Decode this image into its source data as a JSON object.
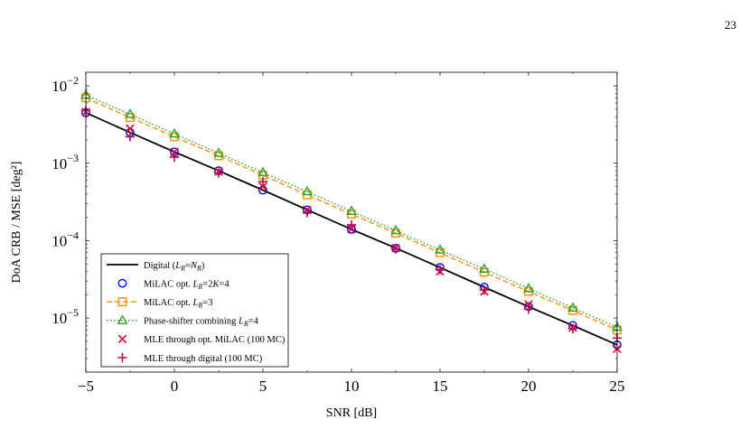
{
  "page_number": "23",
  "chart_data": {
    "type": "line",
    "xlabel": "SNR [dB]",
    "ylabel": "DoA CRB / MSE [deg²]",
    "xlim": [
      -5,
      25
    ],
    "ylim": [
      2e-06,
      0.015
    ],
    "yscale": "log",
    "grid": false,
    "legend_position": "bottom-left",
    "x_ticks": [
      "−5",
      "0",
      "5",
      "10",
      "15",
      "20",
      "25"
    ],
    "y_ticks": [
      {
        "base": "10",
        "exp": "−2"
      },
      {
        "base": "10",
        "exp": "−3"
      },
      {
        "base": "10",
        "exp": "−4"
      },
      {
        "base": "10",
        "exp": "−5"
      }
    ],
    "y_tick_values": [
      0.01,
      0.001,
      0.0001,
      1e-05
    ],
    "x": [
      -5,
      -2.5,
      0,
      2.5,
      5,
      7.5,
      10,
      12.5,
      15,
      17.5,
      20,
      22.5,
      25
    ],
    "series": [
      {
        "name": "Digital (LR=NR)",
        "color": "#000000",
        "style": "solid",
        "marker": "none",
        "values": [
          0.0045,
          0.0025,
          0.0014,
          0.0008,
          0.00045,
          0.00025,
          0.00014,
          8e-05,
          4.5e-05,
          2.5e-05,
          1.4e-05,
          8e-06,
          4.5e-06
        ]
      },
      {
        "name": "MiLAC opt. LR=2K=4",
        "color": "#0000ff",
        "style": "none",
        "marker": "circle",
        "values": [
          0.0045,
          0.0025,
          0.0014,
          0.0008,
          0.00045,
          0.00025,
          0.00014,
          8e-05,
          4.5e-05,
          2.5e-05,
          1.4e-05,
          8e-06,
          4.5e-06
        ]
      },
      {
        "name": "MiLAC opt. LR=3",
        "color": "#ff8c00",
        "style": "dashed",
        "marker": "square",
        "values": [
          0.007,
          0.0039,
          0.0022,
          0.00125,
          0.0007,
          0.00039,
          0.00022,
          0.000125,
          7e-05,
          3.9e-05,
          2.2e-05,
          1.25e-05,
          7e-06
        ]
      },
      {
        "name": "Phase-shifter combining LR=4",
        "color": "#2ca02c",
        "style": "dotted",
        "marker": "triangle",
        "values": [
          0.0076,
          0.0043,
          0.0024,
          0.00135,
          0.00076,
          0.00043,
          0.00024,
          0.000135,
          7.6e-05,
          4.3e-05,
          2.4e-05,
          1.35e-05,
          7.6e-06
        ]
      },
      {
        "name": "MLE through opt. MiLAC (100 MC)",
        "color": "#e8002a",
        "style": "none",
        "marker": "x",
        "values": [
          0.0046,
          0.0028,
          0.0014,
          0.00078,
          0.0005,
          0.00025,
          0.00014,
          8e-05,
          4e-05,
          2.2e-05,
          1.5e-05,
          7.5e-06,
          4e-06
        ]
      },
      {
        "name": "MLE through digital (100 MC)",
        "color": "#b0104e",
        "style": "none",
        "marker": "plus",
        "values": [
          0.0048,
          0.0022,
          0.0012,
          0.00075,
          0.00058,
          0.00023,
          0.00016,
          7.8e-05,
          4.2e-05,
          2.3e-05,
          1.3e-05,
          7.3e-06,
          5.5e-06
        ]
      }
    ],
    "legend": [
      {
        "pre": "Digital (",
        "var": "L",
        "sub": "R",
        "mid": "=",
        "var2": "N",
        "sub2": "R",
        "post": ")"
      },
      {
        "pre": "MiLAC opt. ",
        "var": "L",
        "sub": "R",
        "mid": "=2",
        "var2": "K",
        "sub2": "",
        "post": "=4"
      },
      {
        "pre": "MiLAC opt. ",
        "var": "L",
        "sub": "R",
        "mid": "=3",
        "var2": "",
        "sub2": "",
        "post": ""
      },
      {
        "pre": "Phase-shifter combining ",
        "var": "L",
        "sub": "R",
        "mid": "=4",
        "var2": "",
        "sub2": "",
        "post": ""
      },
      {
        "pre": "MLE through opt. MiLAC (100 MC)",
        "var": "",
        "sub": "",
        "mid": "",
        "var2": "",
        "sub2": "",
        "post": ""
      },
      {
        "pre": "MLE through digital (100 MC)",
        "var": "",
        "sub": "",
        "mid": "",
        "var2": "",
        "sub2": "",
        "post": ""
      }
    ]
  }
}
